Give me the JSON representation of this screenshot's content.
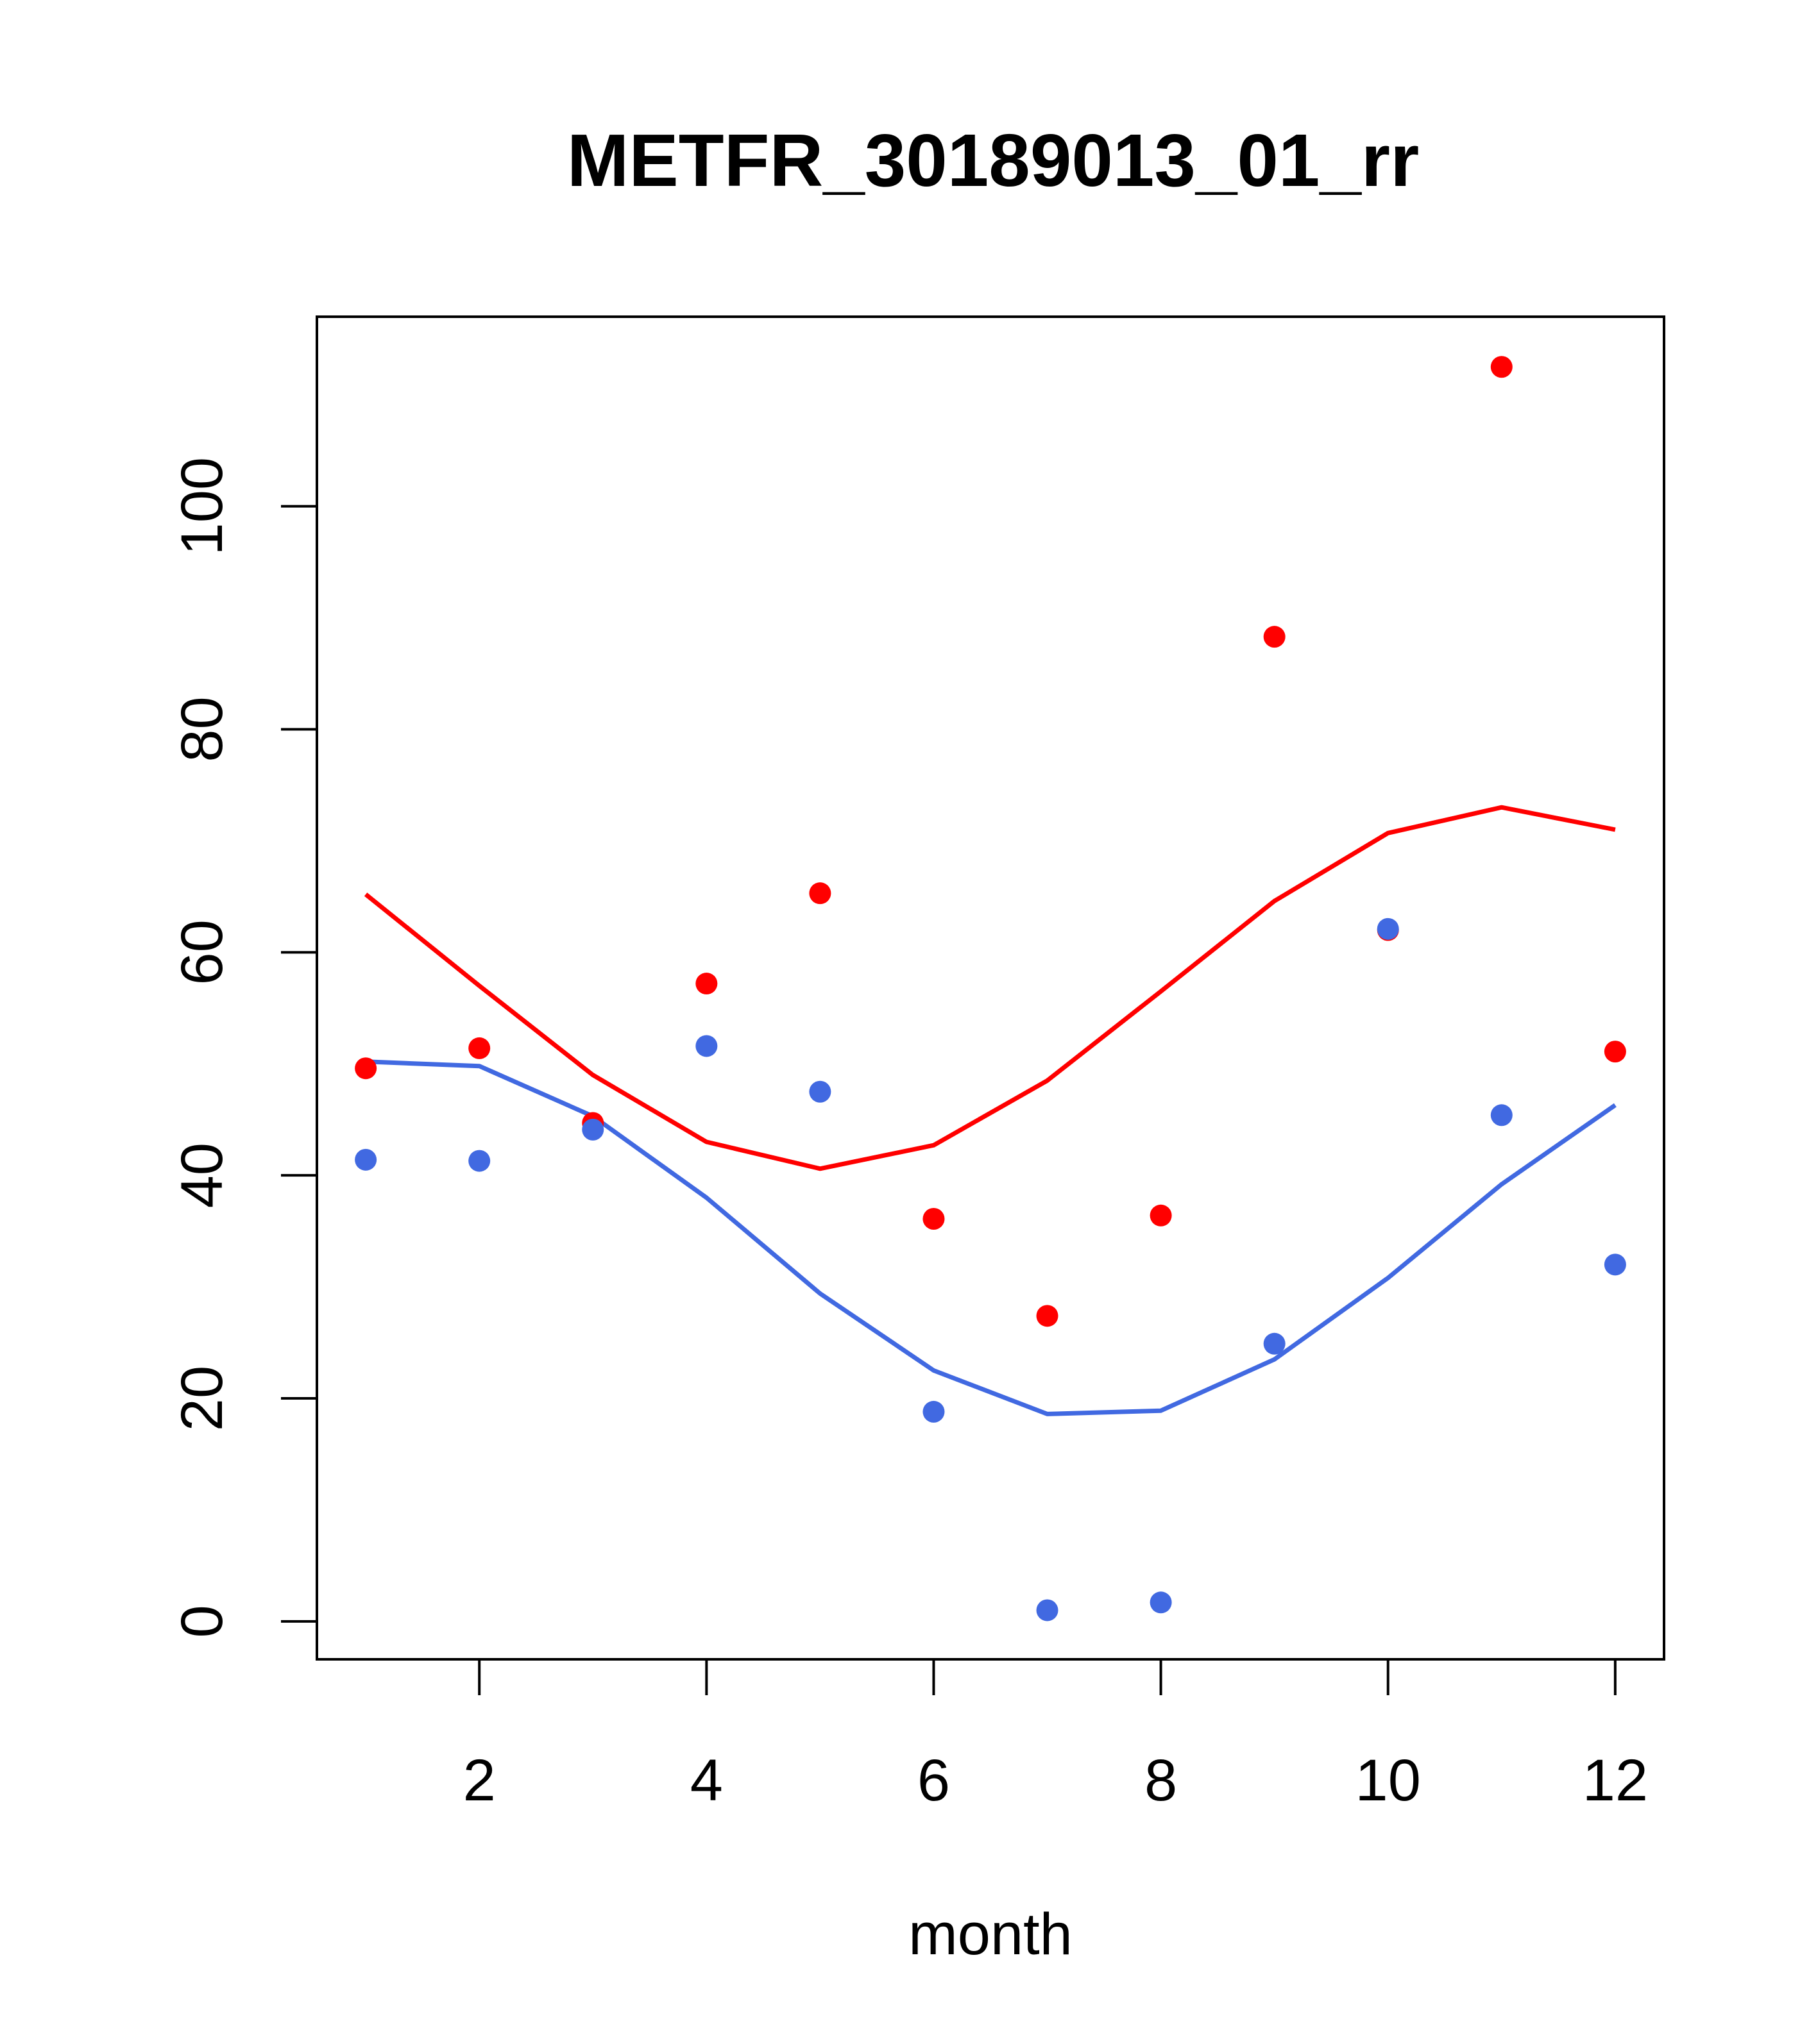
{
  "chart_data": {
    "type": "scatter",
    "title": "METFR_30189013_01_rr",
    "xlabel": "month",
    "ylabel": "",
    "xlim": [
      0.57,
      12.43
    ],
    "ylim": [
      -3.4,
      117
    ],
    "xticks": [
      2,
      4,
      6,
      8,
      10,
      12
    ],
    "yticks": [
      0,
      20,
      40,
      60,
      80,
      100
    ],
    "grid": false,
    "legend": "none",
    "series": [
      {
        "kind": "points",
        "color": "#ff0000",
        "x": [
          1,
          2,
          3,
          4,
          5,
          6,
          7,
          8,
          9,
          10,
          11,
          12
        ],
        "values": [
          49.6,
          51.4,
          44.7,
          57.2,
          65.3,
          36.1,
          27.4,
          36.4,
          88.3,
          62.0,
          112.5,
          51.1
        ]
      },
      {
        "kind": "points",
        "color": "#4169e1",
        "x": [
          1,
          2,
          3,
          4,
          5,
          6,
          7,
          8,
          9,
          10,
          11,
          12
        ],
        "values": [
          41.4,
          41.3,
          44.1,
          51.6,
          47.5,
          18.8,
          1.0,
          1.7,
          24.9,
          62.1,
          45.4,
          32.0
        ]
      },
      {
        "kind": "line",
        "color": "#ff0000",
        "x": [
          1,
          2,
          3,
          4,
          5,
          6,
          7,
          8,
          9,
          10,
          11,
          12
        ],
        "values": [
          65.2,
          57.0,
          49.0,
          43.0,
          40.6,
          42.7,
          48.5,
          56.5,
          64.6,
          70.7,
          73.0,
          71.0
        ]
      },
      {
        "kind": "line",
        "color": "#4169e1",
        "x": [
          1,
          2,
          3,
          4,
          5,
          6,
          7,
          8,
          9,
          10,
          11,
          12
        ],
        "values": [
          50.2,
          49.8,
          45.3,
          38.0,
          29.4,
          22.5,
          18.6,
          18.9,
          23.5,
          30.8,
          39.2,
          46.3
        ]
      }
    ]
  }
}
